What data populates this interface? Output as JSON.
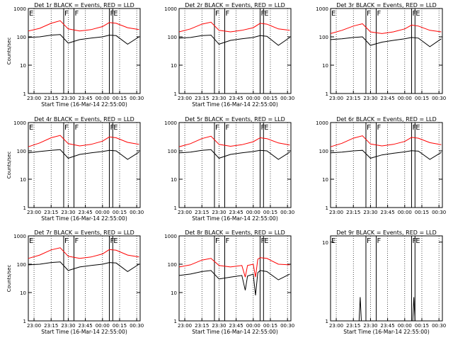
{
  "chart_data": [
    {
      "type": "line",
      "title": "Det 1r BLACK = Events, RED = LLD",
      "ylabel": "Counts/sec",
      "xlabel": "Start Time (16-Mar-14 22:55:00)",
      "x_ticks": [
        "23:00",
        "23:15",
        "23:30",
        "23:45",
        "00:00",
        "00:15",
        "00:30"
      ],
      "y_ticks": [
        "1",
        "10",
        "100",
        "1000"
      ],
      "ylim": [
        1,
        1000
      ],
      "log_y": true,
      "markers": [
        {
          "label": "E",
          "time": "22:55"
        },
        {
          "label": "F",
          "time": "23:26"
        },
        {
          "label": "F",
          "time": "23:35"
        },
        {
          "label": "F",
          "time": "00:06"
        },
        {
          "label": "E",
          "time": "00:09"
        }
      ],
      "series": [
        {
          "name": "LLD",
          "color": "#ff0000",
          "x": [
            "22:55",
            "23:05",
            "23:15",
            "23:23",
            "23:30",
            "23:40",
            "23:50",
            "00:00",
            "00:06",
            "00:12",
            "00:22",
            "00:32"
          ],
          "values": [
            160,
            200,
            300,
            370,
            190,
            160,
            180,
            230,
            320,
            300,
            210,
            180
          ]
        },
        {
          "name": "Events",
          "color": "#000000",
          "x": [
            "22:55",
            "23:05",
            "23:15",
            "23:23",
            "23:30",
            "23:40",
            "23:50",
            "00:00",
            "00:06",
            "00:12",
            "00:22",
            "00:32"
          ],
          "values": [
            95,
            100,
            115,
            120,
            60,
            80,
            90,
            100,
            115,
            110,
            55,
            100
          ]
        }
      ]
    },
    {
      "type": "line",
      "title": "Det 2r BLACK = Events, RED = LLD",
      "ylabel": "",
      "xlabel": "Start Time (16-Mar-14 22:55:00)",
      "x_ticks": [
        "23:00",
        "23:15",
        "23:30",
        "23:45",
        "00:00",
        "00:15",
        "00:30"
      ],
      "y_ticks": [
        "1",
        "10",
        "100",
        "1000"
      ],
      "ylim": [
        1,
        1000
      ],
      "log_y": true,
      "markers": [
        {
          "label": "F",
          "time": "23:26"
        },
        {
          "label": "F",
          "time": "23:35"
        },
        {
          "label": "F",
          "time": "00:06"
        },
        {
          "label": "E",
          "time": "00:09"
        }
      ],
      "series": [
        {
          "name": "LLD",
          "color": "#ff0000",
          "x": [
            "22:55",
            "23:05",
            "23:15",
            "23:23",
            "23:30",
            "23:40",
            "23:50",
            "00:00",
            "00:06",
            "00:12",
            "00:22",
            "00:32"
          ],
          "values": [
            150,
            190,
            280,
            330,
            170,
            150,
            170,
            210,
            300,
            280,
            190,
            170
          ]
        },
        {
          "name": "Events",
          "color": "#000000",
          "x": [
            "22:55",
            "23:05",
            "23:15",
            "23:23",
            "23:30",
            "23:40",
            "23:50",
            "00:00",
            "00:06",
            "00:12",
            "00:22",
            "00:32"
          ],
          "values": [
            90,
            95,
            110,
            115,
            55,
            75,
            85,
            95,
            110,
            105,
            50,
            95
          ]
        }
      ]
    },
    {
      "type": "line",
      "title": "Det 3r BLACK = Events, RED = LLD",
      "ylabel": "",
      "xlabel": "",
      "x_ticks": [
        "23:00",
        "23:15",
        "23:30",
        "23:45",
        "00:00",
        "00:15",
        "00:30"
      ],
      "y_ticks": [
        "1",
        "10",
        "100",
        "1000"
      ],
      "ylim": [
        1,
        1000
      ],
      "log_y": true,
      "markers": [
        {
          "label": "E",
          "time": "22:55"
        },
        {
          "label": "F",
          "time": "23:26"
        },
        {
          "label": "F",
          "time": "23:35"
        },
        {
          "label": "F",
          "time": "00:06"
        },
        {
          "label": "E",
          "time": "00:09"
        }
      ],
      "series": [
        {
          "name": "LLD",
          "color": "#ff0000",
          "x": [
            "22:55",
            "23:05",
            "23:15",
            "23:23",
            "23:30",
            "23:40",
            "23:50",
            "00:00",
            "00:06",
            "00:12",
            "00:22",
            "00:32"
          ],
          "values": [
            130,
            170,
            240,
            290,
            150,
            130,
            150,
            190,
            260,
            240,
            170,
            150
          ]
        },
        {
          "name": "Events",
          "color": "#000000",
          "x": [
            "22:55",
            "23:05",
            "23:15",
            "23:23",
            "23:30",
            "23:40",
            "23:50",
            "00:00",
            "00:06",
            "00:12",
            "00:22",
            "00:32"
          ],
          "values": [
            80,
            85,
            95,
            100,
            50,
            65,
            75,
            85,
            95,
            90,
            45,
            85
          ]
        }
      ]
    },
    {
      "type": "line",
      "title": "Det 4r BLACK = Events, RED = LLD",
      "ylabel": "Counts/sec",
      "xlabel": "Start Time (16-Mar-14 22:55:00)",
      "x_ticks": [
        "23:00",
        "23:15",
        "23:30",
        "23:45",
        "00:00",
        "00:15",
        "00:30"
      ],
      "y_ticks": [
        "1",
        "10",
        "100",
        "1000"
      ],
      "ylim": [
        1,
        1000
      ],
      "log_y": true,
      "markers": [
        {
          "label": "E",
          "time": "22:55"
        },
        {
          "label": "F",
          "time": "23:26"
        },
        {
          "label": "F",
          "time": "23:35"
        },
        {
          "label": "F",
          "time": "00:06"
        },
        {
          "label": "E",
          "time": "00:09"
        }
      ],
      "series": [
        {
          "name": "LLD",
          "color": "#ff0000",
          "x": [
            "22:55",
            "23:05",
            "23:15",
            "23:23",
            "23:30",
            "23:40",
            "23:50",
            "00:00",
            "00:06",
            "00:12",
            "00:22",
            "00:32"
          ],
          "values": [
            140,
            190,
            290,
            350,
            180,
            150,
            170,
            220,
            310,
            290,
            200,
            170
          ]
        },
        {
          "name": "Events",
          "color": "#000000",
          "x": [
            "22:55",
            "23:05",
            "23:15",
            "23:23",
            "23:30",
            "23:40",
            "23:50",
            "00:00",
            "00:06",
            "00:12",
            "00:22",
            "00:32"
          ],
          "values": [
            85,
            95,
            105,
            110,
            55,
            75,
            85,
            95,
            105,
            100,
            50,
            90
          ]
        }
      ]
    },
    {
      "type": "line",
      "title": "Det 5r BLACK = Events, RED = LLD",
      "ylabel": "",
      "xlabel": "Start Time (16-Mar-14 22:55:00)",
      "x_ticks": [
        "23:00",
        "23:15",
        "23:30",
        "23:45",
        "00:00",
        "00:15",
        "00:30"
      ],
      "y_ticks": [
        "1",
        "10",
        "100",
        "1000"
      ],
      "ylim": [
        1,
        1000
      ],
      "log_y": true,
      "markers": [
        {
          "label": "F",
          "time": "23:26"
        },
        {
          "label": "F",
          "time": "23:35"
        },
        {
          "label": "F",
          "time": "00:06"
        },
        {
          "label": "E",
          "time": "00:09"
        }
      ],
      "series": [
        {
          "name": "LLD",
          "color": "#ff0000",
          "x": [
            "22:55",
            "23:05",
            "23:15",
            "23:23",
            "23:30",
            "23:40",
            "23:50",
            "00:00",
            "00:06",
            "00:12",
            "00:22",
            "00:32"
          ],
          "values": [
            140,
            180,
            270,
            330,
            170,
            145,
            165,
            210,
            290,
            270,
            190,
            160
          ]
        },
        {
          "name": "Events",
          "color": "#000000",
          "x": [
            "22:55",
            "23:05",
            "23:15",
            "23:23",
            "23:30",
            "23:40",
            "23:50",
            "00:00",
            "00:06",
            "00:12",
            "00:22",
            "00:32"
          ],
          "values": [
            85,
            90,
            105,
            110,
            55,
            75,
            85,
            95,
            105,
            100,
            50,
            90
          ]
        }
      ]
    },
    {
      "type": "line",
      "title": "Det 6r BLACK = Events, RED = LLD",
      "ylabel": "",
      "xlabel": "",
      "x_ticks": [
        "23:00",
        "23:15",
        "23:30",
        "23:45",
        "00:00",
        "00:15",
        "00:30"
      ],
      "y_ticks": [
        "1",
        "10",
        "100",
        "1000"
      ],
      "ylim": [
        1,
        1000
      ],
      "log_y": true,
      "markers": [
        {
          "label": "F",
          "time": "23:26"
        },
        {
          "label": "F",
          "time": "23:35"
        },
        {
          "label": "F",
          "time": "00:06"
        },
        {
          "label": "E",
          "time": "00:09"
        }
      ],
      "series": [
        {
          "name": "LLD",
          "color": "#ff0000",
          "x": [
            "22:55",
            "23:05",
            "23:15",
            "23:23",
            "23:30",
            "23:40",
            "23:50",
            "00:00",
            "00:06",
            "00:12",
            "00:22",
            "00:32"
          ],
          "values": [
            140,
            185,
            280,
            340,
            175,
            150,
            170,
            215,
            300,
            280,
            195,
            165
          ]
        },
        {
          "name": "Events",
          "color": "#000000",
          "x": [
            "22:55",
            "23:05",
            "23:15",
            "23:23",
            "23:30",
            "23:40",
            "23:50",
            "00:00",
            "00:06",
            "00:12",
            "00:22",
            "00:32"
          ],
          "values": [
            85,
            90,
            100,
            105,
            55,
            72,
            82,
            92,
            102,
            98,
            50,
            88
          ]
        }
      ]
    },
    {
      "type": "line",
      "title": "Det 7r BLACK = Events, RED = LLD",
      "ylabel": "Counts/sec",
      "xlabel": "Start Time (16-Mar-14 22:55:00)",
      "x_ticks": [
        "23:00",
        "23:15",
        "23:30",
        "23:45",
        "00:00",
        "00:15",
        "00:30"
      ],
      "y_ticks": [
        "1",
        "10",
        "100",
        "1000"
      ],
      "ylim": [
        1,
        1000
      ],
      "log_y": true,
      "markers": [
        {
          "label": "E",
          "time": "22:55"
        },
        {
          "label": "F",
          "time": "23:26"
        },
        {
          "label": "F",
          "time": "23:35"
        },
        {
          "label": "F",
          "time": "00:06"
        },
        {
          "label": "E",
          "time": "00:09"
        }
      ],
      "series": [
        {
          "name": "LLD",
          "color": "#ff0000",
          "x": [
            "22:55",
            "23:05",
            "23:15",
            "23:23",
            "23:30",
            "23:40",
            "23:50",
            "00:00",
            "00:06",
            "00:12",
            "00:22",
            "00:32"
          ],
          "values": [
            160,
            210,
            320,
            380,
            190,
            160,
            180,
            230,
            330,
            310,
            210,
            180
          ]
        },
        {
          "name": "Events",
          "color": "#000000",
          "x": [
            "22:55",
            "23:05",
            "23:15",
            "23:23",
            "23:30",
            "23:40",
            "23:50",
            "00:00",
            "00:06",
            "00:12",
            "00:22",
            "00:32"
          ],
          "values": [
            95,
            100,
            115,
            120,
            60,
            80,
            90,
            100,
            115,
            110,
            55,
            100
          ]
        }
      ]
    },
    {
      "type": "line",
      "title": "Det 8r BLACK = Events, RED = LLD",
      "ylabel": "",
      "xlabel": "Start Time (16-Mar-14 22:55:00)",
      "x_ticks": [
        "23:00",
        "23:15",
        "23:30",
        "23:45",
        "00:00",
        "00:15",
        "00:30"
      ],
      "y_ticks": [
        "1",
        "10",
        "100",
        "1000"
      ],
      "ylim": [
        1,
        1000
      ],
      "log_y": true,
      "markers": [
        {
          "label": "F",
          "time": "23:26"
        },
        {
          "label": "F",
          "time": "23:35"
        },
        {
          "label": "F",
          "time": "00:06"
        },
        {
          "label": "E",
          "time": "00:09"
        }
      ],
      "series": [
        {
          "name": "LLD",
          "color": "#ff0000",
          "x": [
            "22:55",
            "23:05",
            "23:15",
            "23:23",
            "23:30",
            "23:40",
            "23:50",
            "23:53",
            "23:55",
            "00:00",
            "00:02",
            "00:04",
            "00:06",
            "00:12",
            "00:22",
            "00:32"
          ],
          "values": [
            80,
            95,
            140,
            160,
            90,
            80,
            90,
            35,
            90,
            100,
            35,
            150,
            170,
            160,
            100,
            95
          ]
        },
        {
          "name": "Events",
          "color": "#000000",
          "x": [
            "22:55",
            "23:05",
            "23:15",
            "23:23",
            "23:30",
            "23:40",
            "23:50",
            "23:53",
            "23:55",
            "00:00",
            "00:02",
            "00:04",
            "00:06",
            "00:12",
            "00:22",
            "00:32"
          ],
          "values": [
            40,
            45,
            55,
            60,
            30,
            35,
            40,
            12,
            38,
            45,
            8,
            50,
            60,
            55,
            28,
            45
          ]
        }
      ]
    },
    {
      "type": "line",
      "title": "Det 9r BLACK = Events, RED = LLD",
      "ylabel": "",
      "xlabel": "Start Time (16-Mar-14 22:55:00)",
      "x_ticks": [
        "23:00",
        "23:15",
        "23:30",
        "23:45",
        "00:00",
        "00:15",
        "00:30"
      ],
      "y_ticks": [
        "1",
        "10"
      ],
      "ylim": [
        1,
        12
      ],
      "log_y": true,
      "markers": [
        {
          "label": "E",
          "time": "22:55"
        },
        {
          "label": "F",
          "time": "23:26"
        },
        {
          "label": "F",
          "time": "23:35"
        },
        {
          "label": "F",
          "time": "00:06"
        },
        {
          "label": "E",
          "time": "00:09"
        }
      ],
      "series": [
        {
          "name": "Events",
          "color": "#000000",
          "x": [
            "23:20",
            "23:21",
            "23:22",
            "00:07",
            "00:08",
            "00:09"
          ],
          "values": [
            1,
            2,
            1,
            1,
            2,
            1
          ]
        }
      ]
    }
  ]
}
